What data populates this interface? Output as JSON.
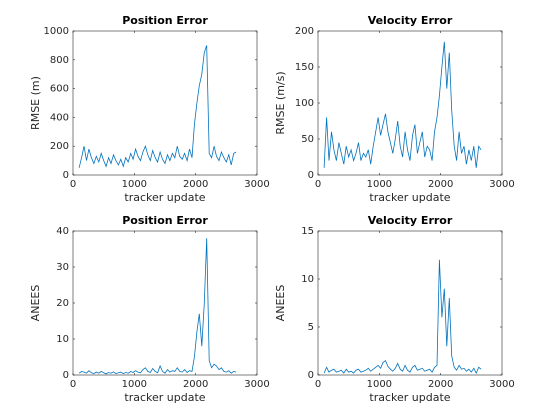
{
  "chart_data": [
    {
      "type": "line",
      "title": "Position Error",
      "xlabel": "tracker update",
      "ylabel": "RMSE (m)",
      "x": [
        100,
        140,
        180,
        220,
        260,
        300,
        340,
        380,
        420,
        460,
        500,
        540,
        580,
        620,
        660,
        700,
        740,
        780,
        820,
        860,
        900,
        940,
        980,
        1020,
        1060,
        1100,
        1140,
        1180,
        1220,
        1260,
        1300,
        1340,
        1380,
        1420,
        1460,
        1500,
        1540,
        1580,
        1620,
        1660,
        1700,
        1740,
        1780,
        1820,
        1860,
        1900,
        1940,
        1980,
        2020,
        2060,
        2100,
        2140,
        2180,
        2220,
        2260,
        2300,
        2340,
        2380,
        2420,
        2460,
        2500,
        2540,
        2580,
        2620,
        2660
      ],
      "values": [
        50,
        120,
        200,
        100,
        180,
        120,
        80,
        130,
        90,
        150,
        100,
        60,
        120,
        80,
        140,
        100,
        70,
        110,
        60,
        120,
        90,
        150,
        110,
        180,
        130,
        100,
        160,
        200,
        140,
        100,
        170,
        120,
        90,
        160,
        110,
        80,
        140,
        100,
        150,
        120,
        200,
        130,
        110,
        150,
        100,
        180,
        120,
        350,
        500,
        620,
        700,
        850,
        900,
        150,
        120,
        200,
        130,
        100,
        160,
        120,
        90,
        140,
        70,
        150,
        160
      ],
      "color": "#0072bd",
      "xlim": [
        0,
        3000
      ],
      "xticks": [
        0,
        1000,
        2000,
        3000
      ],
      "ylim": [
        0,
        1000
      ],
      "yticks": [
        0,
        200,
        400,
        600,
        800,
        1000
      ]
    },
    {
      "type": "line",
      "title": "Velocity Error",
      "xlabel": "tracker update",
      "ylabel": "RMSE (m/s)",
      "x": [
        100,
        140,
        180,
        220,
        260,
        300,
        340,
        380,
        420,
        460,
        500,
        540,
        580,
        620,
        660,
        700,
        740,
        780,
        820,
        860,
        900,
        940,
        980,
        1020,
        1060,
        1100,
        1140,
        1180,
        1220,
        1260,
        1300,
        1340,
        1380,
        1420,
        1460,
        1500,
        1540,
        1580,
        1620,
        1660,
        1700,
        1740,
        1780,
        1820,
        1860,
        1900,
        1940,
        1980,
        2020,
        2060,
        2100,
        2140,
        2180,
        2220,
        2260,
        2300,
        2340,
        2380,
        2420,
        2460,
        2500,
        2540,
        2580,
        2620,
        2660
      ],
      "values": [
        10,
        80,
        20,
        60,
        35,
        20,
        45,
        30,
        15,
        40,
        25,
        35,
        20,
        30,
        45,
        20,
        30,
        25,
        35,
        15,
        40,
        60,
        80,
        55,
        70,
        85,
        60,
        45,
        30,
        50,
        75,
        40,
        25,
        60,
        35,
        20,
        55,
        70,
        30,
        45,
        60,
        25,
        40,
        35,
        20,
        60,
        80,
        110,
        150,
        185,
        120,
        170,
        90,
        40,
        20,
        60,
        30,
        40,
        15,
        35,
        20,
        40,
        10,
        40,
        35
      ],
      "color": "#0072bd",
      "xlim": [
        0,
        3000
      ],
      "xticks": [
        0,
        1000,
        2000,
        3000
      ],
      "ylim": [
        0,
        200
      ],
      "yticks": [
        0,
        50,
        100,
        150,
        200
      ]
    },
    {
      "type": "line",
      "title": "Position Error",
      "xlabel": "tracker update",
      "ylabel": "ANEES",
      "x": [
        100,
        140,
        180,
        220,
        260,
        300,
        340,
        380,
        420,
        460,
        500,
        540,
        580,
        620,
        660,
        700,
        740,
        780,
        820,
        860,
        900,
        940,
        980,
        1020,
        1060,
        1100,
        1140,
        1180,
        1220,
        1260,
        1300,
        1340,
        1380,
        1420,
        1460,
        1500,
        1540,
        1580,
        1620,
        1660,
        1700,
        1740,
        1780,
        1820,
        1860,
        1900,
        1940,
        1980,
        2020,
        2060,
        2100,
        2140,
        2180,
        2220,
        2260,
        2300,
        2340,
        2380,
        2420,
        2460,
        2500,
        2540,
        2580,
        2620,
        2660
      ],
      "values": [
        0.5,
        1,
        0.8,
        0.5,
        1.2,
        0.6,
        0.4,
        0.8,
        0.5,
        1,
        0.6,
        0.3,
        0.7,
        0.5,
        0.9,
        0.4,
        0.6,
        0.8,
        0.4,
        0.7,
        0.5,
        1,
        0.7,
        1.2,
        0.8,
        0.6,
        1.5,
        2,
        1,
        0.7,
        1.8,
        1,
        0.6,
        2.5,
        1,
        0.5,
        1.5,
        0.8,
        1.2,
        1,
        2,
        1,
        0.8,
        1.5,
        0.7,
        1.2,
        1,
        5,
        12,
        17,
        8,
        20,
        38,
        4,
        2,
        3,
        2.5,
        1.5,
        2,
        1,
        0.8,
        1.2,
        0.5,
        1,
        0.8
      ],
      "color": "#0072bd",
      "xlim": [
        0,
        3000
      ],
      "xticks": [
        0,
        1000,
        2000,
        3000
      ],
      "ylim": [
        0,
        40
      ],
      "yticks": [
        0,
        10,
        20,
        30,
        40
      ]
    },
    {
      "type": "line",
      "title": "Velocity Error",
      "xlabel": "tracker update",
      "ylabel": "ANEES",
      "x": [
        100,
        140,
        180,
        220,
        260,
        300,
        340,
        380,
        420,
        460,
        500,
        540,
        580,
        620,
        660,
        700,
        740,
        780,
        820,
        860,
        900,
        940,
        980,
        1020,
        1060,
        1100,
        1140,
        1180,
        1220,
        1260,
        1300,
        1340,
        1380,
        1420,
        1460,
        1500,
        1540,
        1580,
        1620,
        1660,
        1700,
        1740,
        1780,
        1820,
        1860,
        1900,
        1940,
        1980,
        2020,
        2060,
        2100,
        2140,
        2180,
        2220,
        2260,
        2300,
        2340,
        2380,
        2420,
        2460,
        2500,
        2540,
        2580,
        2620,
        2660
      ],
      "values": [
        0.2,
        0.8,
        0.3,
        0.5,
        0.6,
        0.3,
        0.4,
        0.5,
        0.2,
        0.6,
        0.3,
        0.4,
        0.2,
        0.5,
        0.6,
        0.3,
        0.4,
        0.5,
        0.7,
        0.4,
        0.6,
        0.8,
        1,
        0.7,
        1.3,
        1.5,
        0.9,
        0.6,
        0.4,
        0.7,
        1.2,
        0.6,
        0.4,
        1,
        0.5,
        0.3,
        0.8,
        1,
        0.5,
        0.6,
        0.7,
        0.4,
        0.5,
        0.6,
        0.3,
        0.8,
        1,
        12,
        6,
        9,
        3,
        8,
        2,
        0.8,
        0.5,
        1,
        0.6,
        0.7,
        0.4,
        0.6,
        0.3,
        0.7,
        0.2,
        0.8,
        0.6
      ],
      "color": "#0072bd",
      "xlim": [
        0,
        3000
      ],
      "xticks": [
        0,
        1000,
        2000,
        3000
      ],
      "ylim": [
        0,
        15
      ],
      "yticks": [
        0,
        5,
        10,
        15
      ]
    }
  ]
}
